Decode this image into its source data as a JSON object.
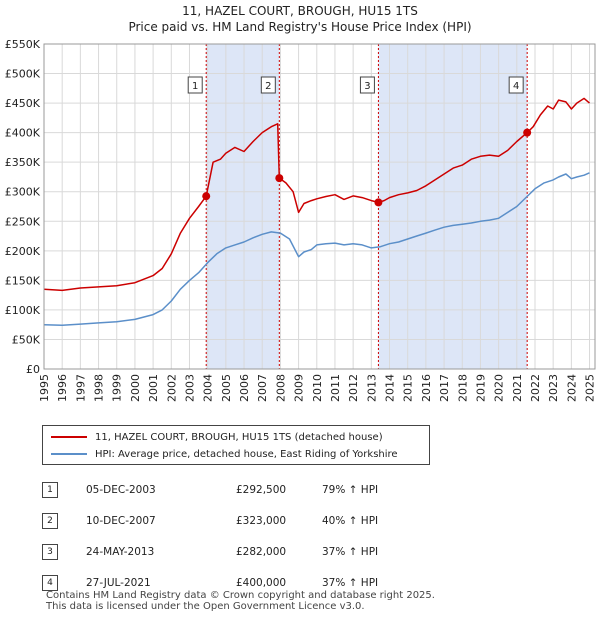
{
  "header": {
    "title_line1": "11, HAZEL COURT, BROUGH, HU15 1TS",
    "title_line2": "Price paid vs. HM Land Registry's House Price Index (HPI)"
  },
  "colors": {
    "property": "#cc0000",
    "hpi": "#5b8fc9",
    "band": "#dde6f7",
    "grid": "#d9d9d9"
  },
  "chart_data": {
    "type": "line",
    "title": "Price paid vs. HM Land Registry's House Price Index (HPI)",
    "xlabel": "",
    "ylabel": "",
    "xlim": [
      1995,
      2025.3
    ],
    "ylim": [
      0,
      550000
    ],
    "y_ticks": [
      0,
      50000,
      100000,
      150000,
      200000,
      250000,
      300000,
      350000,
      400000,
      450000,
      500000,
      550000
    ],
    "y_tick_labels": [
      "£0",
      "£50K",
      "£100K",
      "£150K",
      "£200K",
      "£250K",
      "£300K",
      "£350K",
      "£400K",
      "£450K",
      "£500K",
      "£550K"
    ],
    "x_ticks": [
      1995,
      1996,
      1997,
      1998,
      1999,
      2000,
      2001,
      2002,
      2003,
      2004,
      2005,
      2006,
      2007,
      2008,
      2009,
      2010,
      2011,
      2012,
      2013,
      2014,
      2015,
      2016,
      2017,
      2018,
      2019,
      2020,
      2021,
      2022,
      2023,
      2024,
      2025
    ],
    "x_tick_labels": [
      "1995",
      "1996",
      "1997",
      "1998",
      "1999",
      "2000",
      "2001",
      "2002",
      "2003",
      "2004",
      "2005",
      "2006",
      "2007",
      "2008",
      "2009",
      "2010",
      "2011",
      "2012",
      "2013",
      "2014",
      "2015",
      "2016",
      "2017",
      "2018",
      "2019",
      "2020",
      "2021",
      "2022",
      "2023",
      "2024",
      "2025"
    ],
    "shaded_periods": [
      [
        2003.92,
        2007.94
      ],
      [
        2013.39,
        2021.57
      ]
    ],
    "series": [
      {
        "name": "11, HAZEL COURT, BROUGH, HU15 1TS (detached house)",
        "color": "#cc0000",
        "x": [
          1995.0,
          1996.0,
          1997.0,
          1998.0,
          1999.0,
          2000.0,
          2001.0,
          2001.5,
          2002.0,
          2002.5,
          2003.0,
          2003.5,
          2003.92,
          2004.3,
          2004.7,
          2005.0,
          2005.5,
          2006.0,
          2006.5,
          2007.0,
          2007.5,
          2007.85,
          2007.94,
          2008.3,
          2008.7,
          2009.0,
          2009.3,
          2009.7,
          2010.0,
          2010.5,
          2011.0,
          2011.5,
          2012.0,
          2012.5,
          2013.0,
          2013.39,
          2013.7,
          2014.0,
          2014.5,
          2015.0,
          2015.5,
          2016.0,
          2016.5,
          2017.0,
          2017.5,
          2018.0,
          2018.5,
          2019.0,
          2019.5,
          2020.0,
          2020.5,
          2021.0,
          2021.57,
          2021.9,
          2022.3,
          2022.7,
          2023.0,
          2023.3,
          2023.7,
          2024.0,
          2024.3,
          2024.7,
          2025.0
        ],
        "values": [
          135000,
          133000,
          137000,
          139000,
          141000,
          146000,
          158000,
          170000,
          195000,
          230000,
          255000,
          275000,
          292500,
          350000,
          355000,
          365000,
          375000,
          368000,
          385000,
          400000,
          410000,
          415000,
          323000,
          315000,
          300000,
          265000,
          280000,
          285000,
          288000,
          292000,
          295000,
          287000,
          293000,
          290000,
          285000,
          282000,
          285000,
          290000,
          295000,
          298000,
          302000,
          310000,
          320000,
          330000,
          340000,
          345000,
          355000,
          360000,
          362000,
          360000,
          370000,
          385000,
          400000,
          410000,
          430000,
          445000,
          440000,
          455000,
          452000,
          440000,
          450000,
          458000,
          450000
        ]
      },
      {
        "name": "HPI: Average price, detached house, East Riding of Yorkshire",
        "color": "#5b8fc9",
        "x": [
          1995.0,
          1996.0,
          1997.0,
          1998.0,
          1999.0,
          2000.0,
          2001.0,
          2001.5,
          2002.0,
          2002.5,
          2003.0,
          2003.5,
          2004.0,
          2004.5,
          2005.0,
          2005.5,
          2006.0,
          2006.5,
          2007.0,
          2007.5,
          2008.0,
          2008.5,
          2009.0,
          2009.3,
          2009.7,
          2010.0,
          2010.5,
          2011.0,
          2011.5,
          2012.0,
          2012.5,
          2013.0,
          2013.5,
          2014.0,
          2014.5,
          2015.0,
          2015.5,
          2016.0,
          2016.5,
          2017.0,
          2017.5,
          2018.0,
          2018.5,
          2019.0,
          2019.5,
          2020.0,
          2020.5,
          2021.0,
          2021.5,
          2022.0,
          2022.5,
          2023.0,
          2023.3,
          2023.7,
          2024.0,
          2024.3,
          2024.7,
          2025.0
        ],
        "values": [
          75000,
          74000,
          76000,
          78000,
          80000,
          84000,
          92000,
          100000,
          115000,
          135000,
          150000,
          163000,
          180000,
          195000,
          205000,
          210000,
          215000,
          222000,
          228000,
          232000,
          230000,
          220000,
          190000,
          198000,
          202000,
          210000,
          212000,
          213000,
          210000,
          212000,
          210000,
          205000,
          207000,
          212000,
          215000,
          220000,
          225000,
          230000,
          235000,
          240000,
          243000,
          245000,
          247000,
          250000,
          252000,
          255000,
          265000,
          275000,
          290000,
          305000,
          315000,
          320000,
          325000,
          330000,
          322000,
          325000,
          328000,
          332000
        ]
      }
    ],
    "sale_points": [
      {
        "label": "1",
        "x": 2003.92,
        "value": 292500
      },
      {
        "label": "2",
        "x": 2007.94,
        "value": 323000
      },
      {
        "label": "3",
        "x": 2013.39,
        "value": 282000
      },
      {
        "label": "4",
        "x": 2021.57,
        "value": 400000
      }
    ]
  },
  "legend": {
    "property_label": "11, HAZEL COURT, BROUGH, HU15 1TS (detached house)",
    "hpi_label": "HPI: Average price, detached house, East Riding of Yorkshire"
  },
  "sales": [
    {
      "num": "1",
      "date": "05-DEC-2003",
      "price": "£292,500",
      "hpi": "79% ↑ HPI"
    },
    {
      "num": "2",
      "date": "10-DEC-2007",
      "price": "£323,000",
      "hpi": "40% ↑ HPI"
    },
    {
      "num": "3",
      "date": "24-MAY-2013",
      "price": "£282,000",
      "hpi": "37% ↑ HPI"
    },
    {
      "num": "4",
      "date": "27-JUL-2021",
      "price": "£400,000",
      "hpi": "37% ↑ HPI"
    }
  ],
  "footer": {
    "line1": "Contains HM Land Registry data © Crown copyright and database right 2025.",
    "line2": "This data is licensed under the Open Government Licence v3.0."
  }
}
